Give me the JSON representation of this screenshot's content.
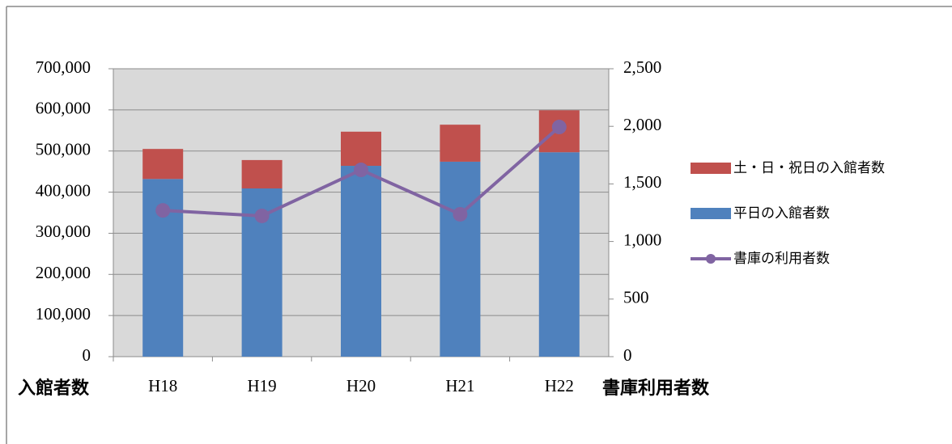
{
  "chart_data": {
    "type": "bar",
    "categories": [
      "H18",
      "H19",
      "H20",
      "H21",
      "H22"
    ],
    "stacked": true,
    "series": [
      {
        "name": "平日の入館者数",
        "color": "#4f81bd",
        "type": "bar",
        "values": [
          432000,
          409000,
          464000,
          474000,
          497000
        ]
      },
      {
        "name": "土・日・祝日の入館者数",
        "color": "#c0504d",
        "type": "bar",
        "values": [
          73000,
          69000,
          83000,
          90000,
          102000
        ]
      },
      {
        "name": "書庫の利用者数",
        "color": "#8064a2",
        "type": "line",
        "axis": "y2",
        "values": [
          1270,
          1222,
          1622,
          1236,
          1994
        ]
      }
    ],
    "ylim": [
      0,
      700000
    ],
    "yticks": [
      0,
      {
        "value": 100000,
        "label": "100,000"
      },
      {
        "value": 200000,
        "label": "200,000"
      },
      {
        "value": 300000,
        "label": "300,000"
      },
      {
        "value": 400000,
        "label": "400,000"
      },
      {
        "value": 500000,
        "label": "500,000"
      },
      {
        "value": 600000,
        "label": "600,000"
      },
      {
        "value": 700000,
        "label": "700,000"
      }
    ],
    "y2lim": [
      0,
      2500
    ],
    "y2ticks": [
      0,
      500,
      {
        "value": 1000,
        "label": "1,000"
      },
      {
        "value": 1500,
        "label": "1,500"
      },
      {
        "value": 2000,
        "label": "2,000"
      },
      {
        "value": 2500,
        "label": "2,500"
      }
    ],
    "ylabel": "入館者数",
    "y2label": "書庫利用者数",
    "grid": true,
    "legend": "right"
  }
}
